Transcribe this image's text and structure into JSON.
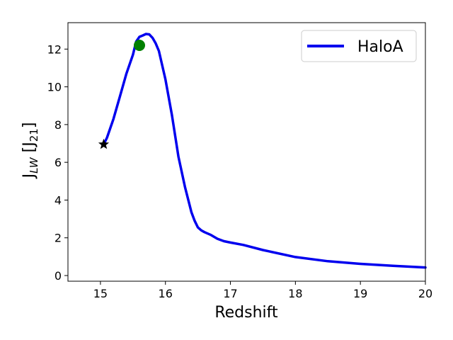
{
  "chart_data": {
    "type": "line",
    "xlabel": "Redshift",
    "ylabel_main": "J",
    "ylabel_main_sub": "LW",
    "ylabel_unit_open": " [J",
    "ylabel_unit_sub": "21",
    "ylabel_unit_close": "]",
    "xlim": [
      14.5,
      20
    ],
    "ylim": [
      -0.3,
      13.4
    ],
    "xticks": [
      15,
      16,
      17,
      18,
      19,
      20
    ],
    "yticks": [
      0,
      2,
      4,
      6,
      8,
      10,
      12
    ],
    "grid": false,
    "legend_position": "top-right",
    "colors": {
      "line": "#0000ee",
      "circle": "#008000",
      "star": "#000000"
    },
    "series": [
      {
        "name": "HaloA",
        "x": [
          15.05,
          15.1,
          15.2,
          15.3,
          15.4,
          15.5,
          15.55,
          15.6,
          15.65,
          15.7,
          15.75,
          15.8,
          15.85,
          15.9,
          16.0,
          16.1,
          16.2,
          16.3,
          16.4,
          16.45,
          16.5,
          16.55,
          16.6,
          16.7,
          16.8,
          16.9,
          17.0,
          17.2,
          17.5,
          18.0,
          18.5,
          19.0,
          19.5,
          20.0
        ],
        "y": [
          6.95,
          7.3,
          8.3,
          9.5,
          10.7,
          11.7,
          12.4,
          12.65,
          12.72,
          12.8,
          12.78,
          12.6,
          12.3,
          11.9,
          10.4,
          8.5,
          6.3,
          4.7,
          3.35,
          2.9,
          2.55,
          2.4,
          2.3,
          2.15,
          1.95,
          1.82,
          1.75,
          1.62,
          1.35,
          0.98,
          0.76,
          0.62,
          0.52,
          0.43
        ]
      }
    ],
    "markers": [
      {
        "shape": "circle",
        "x": 15.6,
        "y": 12.2
      },
      {
        "shape": "star",
        "x": 15.05,
        "y": 6.95
      }
    ]
  }
}
